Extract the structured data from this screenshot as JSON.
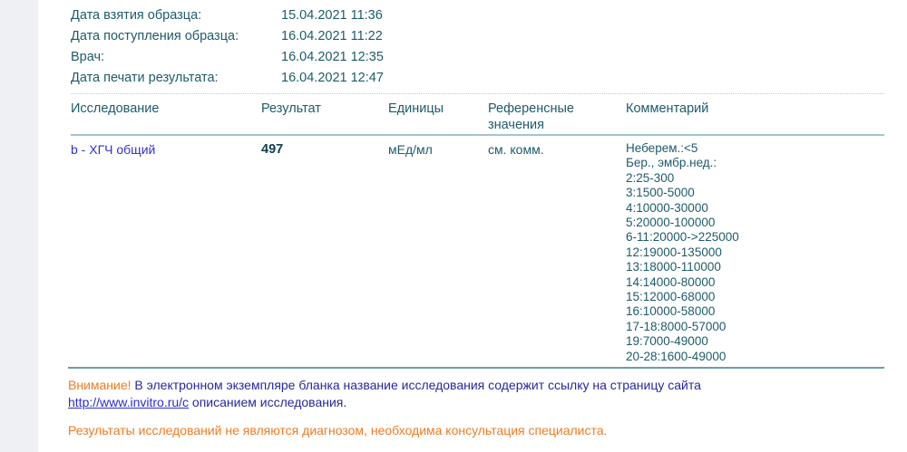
{
  "meta": {
    "rows": [
      {
        "label": "Дата взятия образца:",
        "value": "15.04.2021 11:36"
      },
      {
        "label": "Дата поступления образца:",
        "value": "16.04.2021 11:22"
      },
      {
        "label": "Врач:",
        "value": "16.04.2021 12:35"
      },
      {
        "label": "Дата печати результата:",
        "value": "16.04.2021 12:47"
      }
    ]
  },
  "table": {
    "headers": {
      "test": "Исследование",
      "result": "Результат",
      "units": "Единицы",
      "reference": "Референсные значения",
      "comment": "Комментарий"
    },
    "row": {
      "test": "b - ХГЧ общий",
      "result": "497",
      "units": "мЕд/мл",
      "reference": "см. комм.",
      "comment_lines": [
        "Неберем.:<5",
        "Бер., эмбр.нед.:",
        "2:25-300",
        "3:1500-5000",
        "4:10000-30000",
        "5:20000-100000",
        "6-11:20000->225000",
        "12:19000-135000",
        "13:18000-110000",
        "14:14000-80000",
        "15:12000-68000",
        "16:10000-58000",
        "17-18:8000-57000",
        "19:7000-49000",
        "20-28:1600-49000"
      ]
    }
  },
  "notice": {
    "attention": "Внимание!",
    "text": " В электронном экземпляре бланка название исследования содержит ссылку на страницу сайта",
    "link": "http://www.invitro.ru/с",
    "after_link": " описанием исследования.",
    "disclaimer": "Результаты исследований не являются диагнозом, необходима консультация специалиста."
  },
  "colors": {
    "text_teal": "#1d5b6a",
    "link_blue": "#3431c7",
    "navy": "#27279e",
    "orange": "#ee7b22",
    "rule_light": "#a4c3cd",
    "rule_dark": "#6d9dab",
    "left_strip": "#eef0f3"
  }
}
